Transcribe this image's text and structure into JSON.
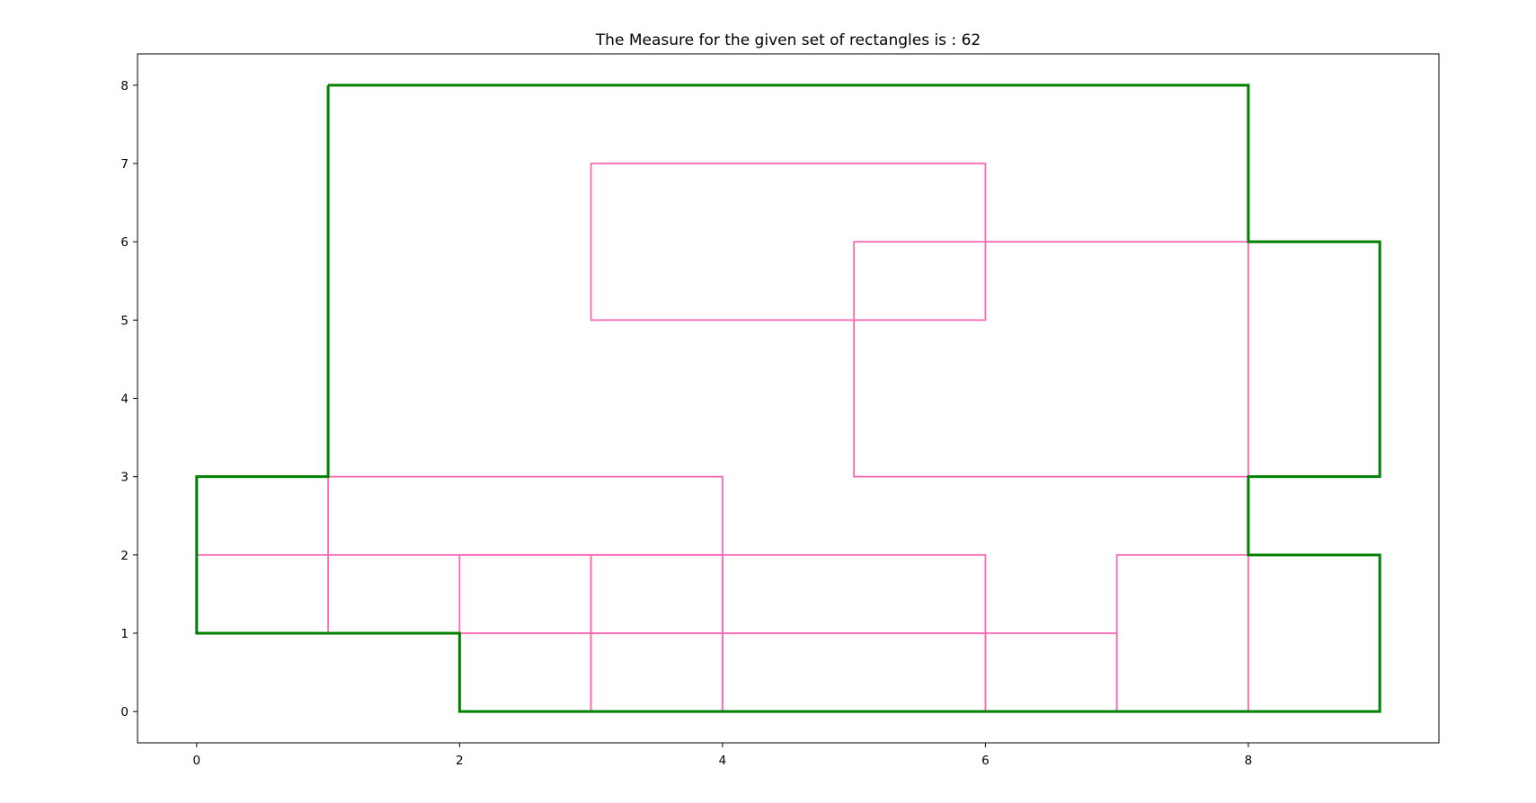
{
  "chart_data": {
    "type": "rectangle-outline",
    "title": "The Measure for the given set of rectangles is : 62",
    "xlim": [
      -0.45,
      9.45
    ],
    "ylim": [
      -0.4,
      8.4
    ],
    "x_ticks": [
      0,
      2,
      4,
      6,
      8
    ],
    "y_ticks": [
      0,
      1,
      2,
      3,
      4,
      5,
      6,
      7,
      8
    ],
    "colors": {
      "rectangles": "#ff69b4",
      "boundary": "#008000",
      "axes": "#000000"
    },
    "rectangles": [
      {
        "x1": 3,
        "y1": 5,
        "x2": 6,
        "y2": 7
      },
      {
        "x1": 5,
        "y1": 3,
        "x2": 8,
        "y2": 6
      },
      {
        "x1": 1,
        "y1": 1,
        "x2": 4,
        "y2": 3
      },
      {
        "x1": 0,
        "y1": 1,
        "x2": 6,
        "y2": 2
      },
      {
        "x1": 2,
        "y1": 0,
        "x2": 3,
        "y2": 2
      },
      {
        "x1": 3,
        "y1": 0,
        "x2": 4,
        "y2": 2
      },
      {
        "x1": 4,
        "y1": 0,
        "x2": 6,
        "y2": 1
      },
      {
        "x1": 6,
        "y1": 0,
        "x2": 7,
        "y2": 1
      },
      {
        "x1": 7,
        "y1": 0,
        "x2": 8,
        "y2": 2
      }
    ],
    "boundary": [
      [
        1,
        8
      ],
      [
        8,
        8
      ],
      [
        8,
        6
      ],
      [
        9,
        6
      ],
      [
        9,
        3
      ],
      [
        8,
        3
      ],
      [
        8,
        2
      ],
      [
        9,
        2
      ],
      [
        9,
        0
      ],
      [
        2,
        0
      ],
      [
        2,
        1
      ],
      [
        0,
        1
      ],
      [
        0,
        3
      ],
      [
        1,
        3
      ],
      [
        1,
        8
      ]
    ]
  }
}
